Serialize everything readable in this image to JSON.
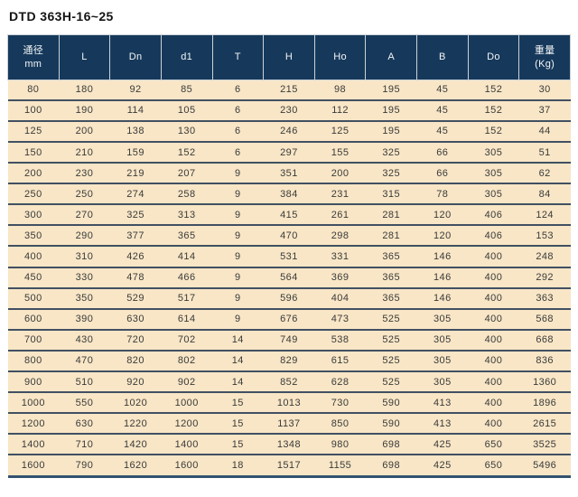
{
  "title": "DTD 363H-16~25",
  "colors": {
    "header_bg": "#16395b",
    "header_text": "#f3f5f7",
    "header_border": "#ccd1d8",
    "row_bg": "#f8e6c6",
    "row_separator": "#425062",
    "table_bottom_border": "#33526f",
    "body_text": "#3a3a3a",
    "title_text": "#141414",
    "page_bg": "#ffffff"
  },
  "table": {
    "headers": [
      {
        "key": "tongjing-mm",
        "line1": "通径",
        "line2": "mm"
      },
      {
        "key": "L",
        "line1": "L"
      },
      {
        "key": "Dn",
        "line1": "Dn"
      },
      {
        "key": "d1",
        "line1": "d1"
      },
      {
        "key": "T",
        "line1": "T"
      },
      {
        "key": "H",
        "line1": "H"
      },
      {
        "key": "Ho",
        "line1": "Ho"
      },
      {
        "key": "A",
        "line1": "A"
      },
      {
        "key": "B",
        "line1": "B"
      },
      {
        "key": "Do",
        "line1": "Do"
      },
      {
        "key": "weight-kg",
        "line1": "重量",
        "line2": "(Kg)"
      }
    ],
    "rows": [
      [
        80,
        180,
        92,
        85,
        6,
        215,
        98,
        195,
        45,
        152,
        30
      ],
      [
        100,
        190,
        114,
        105,
        6,
        230,
        112,
        195,
        45,
        152,
        37
      ],
      [
        125,
        200,
        138,
        130,
        6,
        246,
        125,
        195,
        45,
        152,
        44
      ],
      [
        150,
        210,
        159,
        152,
        6,
        297,
        155,
        325,
        66,
        305,
        51
      ],
      [
        200,
        230,
        219,
        207,
        9,
        351,
        200,
        325,
        66,
        305,
        62
      ],
      [
        250,
        250,
        274,
        258,
        9,
        384,
        231,
        315,
        78,
        305,
        84
      ],
      [
        300,
        270,
        325,
        313,
        9,
        415,
        261,
        281,
        120,
        406,
        124
      ],
      [
        350,
        290,
        377,
        365,
        9,
        470,
        298,
        281,
        120,
        406,
        153
      ],
      [
        400,
        310,
        426,
        414,
        9,
        531,
        331,
        365,
        146,
        400,
        248
      ],
      [
        450,
        330,
        478,
        466,
        9,
        564,
        369,
        365,
        146,
        400,
        292
      ],
      [
        500,
        350,
        529,
        517,
        9,
        596,
        404,
        365,
        146,
        400,
        363
      ],
      [
        600,
        390,
        630,
        614,
        9,
        676,
        473,
        525,
        305,
        400,
        568
      ],
      [
        700,
        430,
        720,
        702,
        14,
        749,
        538,
        525,
        305,
        400,
        668
      ],
      [
        800,
        470,
        820,
        802,
        14,
        829,
        615,
        525,
        305,
        400,
        836
      ],
      [
        900,
        510,
        920,
        902,
        14,
        852,
        628,
        525,
        305,
        400,
        1360
      ],
      [
        1000,
        550,
        1020,
        1000,
        15,
        1013,
        730,
        590,
        413,
        400,
        1896
      ],
      [
        1200,
        630,
        1220,
        1200,
        15,
        1137,
        850,
        590,
        413,
        400,
        2615
      ],
      [
        1400,
        710,
        1420,
        1400,
        15,
        1348,
        980,
        698,
        425,
        650,
        3525
      ],
      [
        1600,
        790,
        1620,
        1600,
        18,
        1517,
        1155,
        698,
        425,
        650,
        5496
      ]
    ]
  }
}
